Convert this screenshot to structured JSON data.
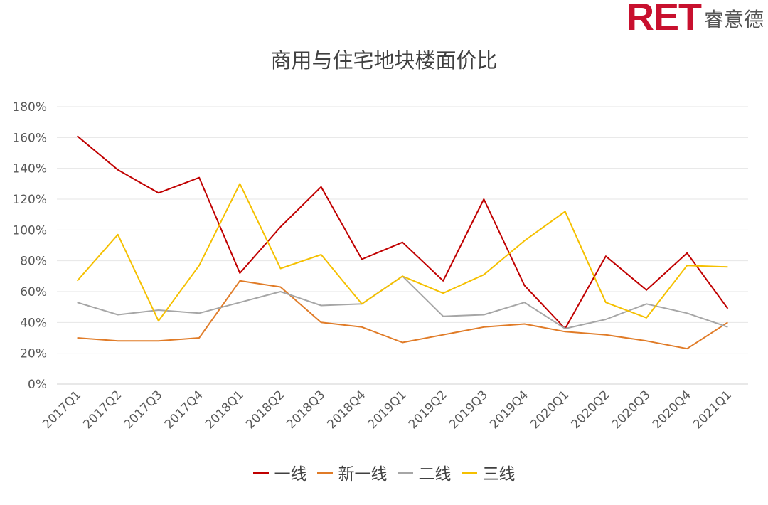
{
  "logo": {
    "brand": "RET",
    "name": "睿意德"
  },
  "chart_data": {
    "type": "line",
    "title": "商用与住宅地块楼面价比",
    "categories": [
      "2017Q1",
      "2017Q2",
      "2017Q3",
      "2017Q4",
      "2018Q1",
      "2018Q2",
      "2018Q3",
      "2018Q4",
      "2019Q1",
      "2019Q2",
      "2019Q3",
      "2019Q4",
      "2020Q1",
      "2020Q2",
      "2020Q3",
      "2020Q4",
      "2021Q1"
    ],
    "y_ticks": [
      "0%",
      "20%",
      "40%",
      "60%",
      "80%",
      "100%",
      "120%",
      "140%",
      "160%",
      "180%"
    ],
    "ylim": [
      0,
      180
    ],
    "y_unit": "%",
    "grid": true,
    "legend_position": "bottom",
    "series": [
      {
        "name": "一线",
        "color": "#c00000",
        "values": [
          161,
          139,
          124,
          134,
          72,
          102,
          128,
          81,
          92,
          67,
          120,
          64,
          36,
          83,
          61,
          85,
          49
        ]
      },
      {
        "name": "新一线",
        "color": "#e07b27",
        "values": [
          30,
          28,
          28,
          30,
          67,
          63,
          40,
          37,
          27,
          32,
          37,
          39,
          34,
          32,
          28,
          23,
          40
        ]
      },
      {
        "name": "二线",
        "color": "#a6a6a6",
        "values": [
          53,
          45,
          48,
          46,
          53,
          60,
          51,
          52,
          70,
          44,
          45,
          53,
          36,
          42,
          52,
          46,
          37
        ]
      },
      {
        "name": "三线",
        "color": "#f5c000",
        "values": [
          67,
          97,
          41,
          77,
          130,
          75,
          84,
          52,
          70,
          59,
          71,
          93,
          112,
          53,
          43,
          77,
          76
        ]
      }
    ]
  }
}
